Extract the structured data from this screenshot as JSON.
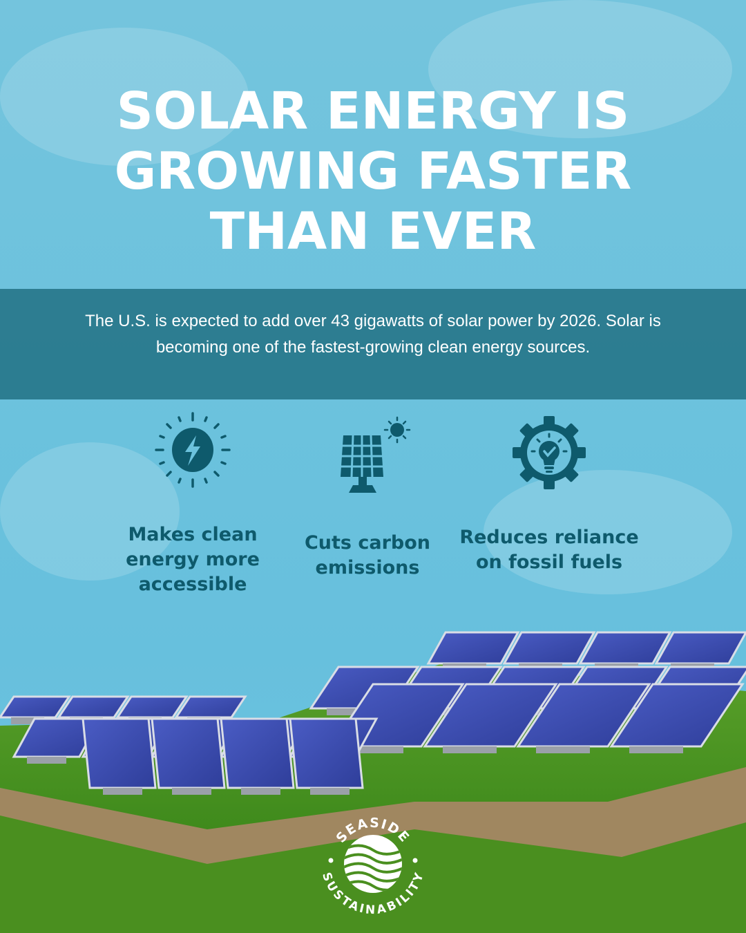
{
  "title": {
    "lines": [
      "SOLAR ENERGY IS",
      "GROWING FASTER",
      "THAN EVER"
    ]
  },
  "intro": "The U.S. is expected to add over 43 gigawatts of solar power by 2026. Solar is becoming one of the fastest-growing clean energy sources.",
  "features": [
    {
      "icon": "lightning-sun-icon",
      "label": "Makes clean energy more accessible"
    },
    {
      "icon": "solar-panel-sun-icon",
      "label": "Cuts carbon emissions"
    },
    {
      "icon": "gear-lightbulb-check-icon",
      "label": "Reduces reliance on fossil fuels"
    }
  ],
  "logo": {
    "top_text": "SEASIDE",
    "bottom_text": "SUSTAINABILITY"
  },
  "colors": {
    "sky": "#6cc2dd",
    "band": "#1e6e80",
    "icon_text": "#0e5a6c",
    "grass": "#4a8f1f",
    "panel": "#3d4fb0"
  }
}
